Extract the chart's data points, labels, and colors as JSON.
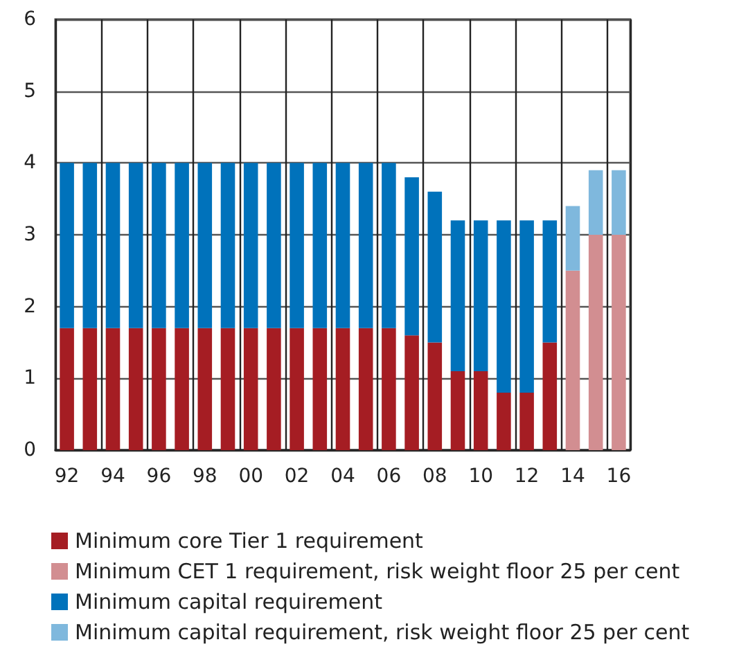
{
  "chart_data": {
    "type": "bar",
    "stacked": true,
    "categories": [
      "92",
      null,
      "94",
      null,
      "96",
      null,
      "98",
      null,
      "00",
      null,
      "02",
      null,
      "04",
      null,
      "06",
      null,
      "08",
      null,
      "10",
      null,
      "12",
      null,
      "14",
      null,
      "16"
    ],
    "series": [
      {
        "name": "Minimum core Tier 1 requirement",
        "color": "#a51d23",
        "values": [
          1.7,
          1.7,
          1.7,
          1.7,
          1.7,
          1.7,
          1.7,
          1.7,
          1.7,
          1.7,
          1.7,
          1.7,
          1.7,
          1.7,
          1.7,
          1.6,
          1.5,
          1.1,
          1.1,
          0.8,
          0.8,
          1.5,
          null,
          null,
          null
        ]
      },
      {
        "name": "Minimum CET 1 requirement, risk weight floor 25 per cent",
        "color": "#d28e91",
        "values": [
          null,
          null,
          null,
          null,
          null,
          null,
          null,
          null,
          null,
          null,
          null,
          null,
          null,
          null,
          null,
          null,
          null,
          null,
          null,
          null,
          null,
          null,
          2.5,
          3.0,
          3.0
        ]
      },
      {
        "name": "Minimum capital requirement",
        "color": "#0072bb",
        "values": [
          2.3,
          2.3,
          2.3,
          2.3,
          2.3,
          2.3,
          2.3,
          2.3,
          2.3,
          2.3,
          2.3,
          2.3,
          2.3,
          2.3,
          2.3,
          2.2,
          2.1,
          2.1,
          2.1,
          2.4,
          2.4,
          1.7,
          null,
          null,
          null
        ]
      },
      {
        "name": "Minimum capital requirement, risk weight floor 25 per cent",
        "color": "#7fb8dd",
        "values": [
          null,
          null,
          null,
          null,
          null,
          null,
          null,
          null,
          null,
          null,
          null,
          null,
          null,
          null,
          null,
          null,
          null,
          null,
          null,
          null,
          null,
          null,
          0.9,
          0.9,
          0.9
        ]
      }
    ],
    "ylim": [
      0,
      6
    ],
    "yticks": [
      0,
      1,
      2,
      3,
      4,
      5,
      6
    ],
    "grid": true,
    "legend": "bottom"
  }
}
